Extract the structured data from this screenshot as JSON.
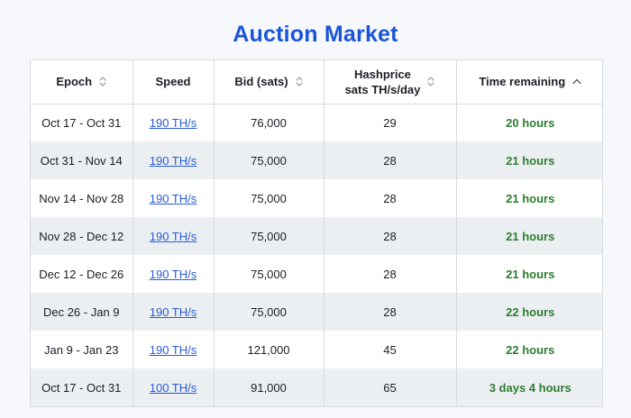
{
  "title": "Auction Market",
  "colors": {
    "title": "#1a55d8",
    "link": "#2a5bd7",
    "time_remaining": "#2e7d32",
    "row_shade": "#eceff1",
    "border": "#d7dbe0"
  },
  "table": {
    "columns": [
      {
        "label": "Epoch",
        "sort_icon": "sort-updown-icon"
      },
      {
        "label": "Speed",
        "sort_icon": ""
      },
      {
        "label": "Bid (sats)",
        "sort_icon": "sort-updown-icon"
      },
      {
        "label_line1": "Hashprice",
        "label_line2": "sats TH/s/day",
        "sort_icon": "sort-updown-icon"
      },
      {
        "label": "Time remaining",
        "sort_icon": "chevron-up-icon"
      }
    ],
    "rows": [
      {
        "epoch": "Oct 17 - Oct 31",
        "speed": "190 TH/s",
        "bid": "76,000",
        "hashprice": "29",
        "time": "20 hours"
      },
      {
        "epoch": "Oct 31 - Nov 14",
        "speed": "190 TH/s",
        "bid": "75,000",
        "hashprice": "28",
        "time": "21 hours"
      },
      {
        "epoch": "Nov 14 - Nov 28",
        "speed": "190 TH/s",
        "bid": "75,000",
        "hashprice": "28",
        "time": "21 hours"
      },
      {
        "epoch": "Nov 28 - Dec 12",
        "speed": "190 TH/s",
        "bid": "75,000",
        "hashprice": "28",
        "time": "21 hours"
      },
      {
        "epoch": "Dec 12 - Dec 26",
        "speed": "190 TH/s",
        "bid": "75,000",
        "hashprice": "28",
        "time": "21 hours"
      },
      {
        "epoch": "Dec 26 - Jan 9",
        "speed": "190 TH/s",
        "bid": "75,000",
        "hashprice": "28",
        "time": "22 hours"
      },
      {
        "epoch": "Jan 9 - Jan 23",
        "speed": "190 TH/s",
        "bid": "121,000",
        "hashprice": "45",
        "time": "22 hours"
      },
      {
        "epoch": "Oct 17 - Oct 31",
        "speed": "100 TH/s",
        "bid": "91,000",
        "hashprice": "65",
        "time": "3 days 4 hours"
      }
    ]
  }
}
